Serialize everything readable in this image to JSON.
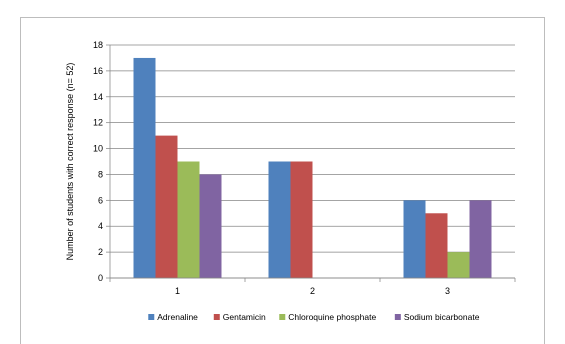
{
  "chart_data": {
    "type": "bar",
    "categories": [
      "1",
      "2",
      "3"
    ],
    "series": [
      {
        "name": "Adrenaline",
        "values": [
          17,
          9,
          6
        ],
        "color": "#4f81bd"
      },
      {
        "name": "Gentamicin",
        "values": [
          11,
          9,
          5
        ],
        "color": "#c0504d"
      },
      {
        "name": "Chloroquine phosphate",
        "values": [
          9,
          0,
          2
        ],
        "color": "#9bbb59"
      },
      {
        "name": "Sodium bicarbonate",
        "values": [
          8,
          0,
          6
        ],
        "color": "#8064a2"
      }
    ],
    "ylabel": "Number of students with correct response (n= 52)",
    "xlabel": "",
    "ylim": [
      0,
      18
    ],
    "yticks": [
      0,
      2,
      4,
      6,
      8,
      10,
      12,
      14,
      16,
      18
    ],
    "grid": true,
    "legend_position": "bottom"
  }
}
